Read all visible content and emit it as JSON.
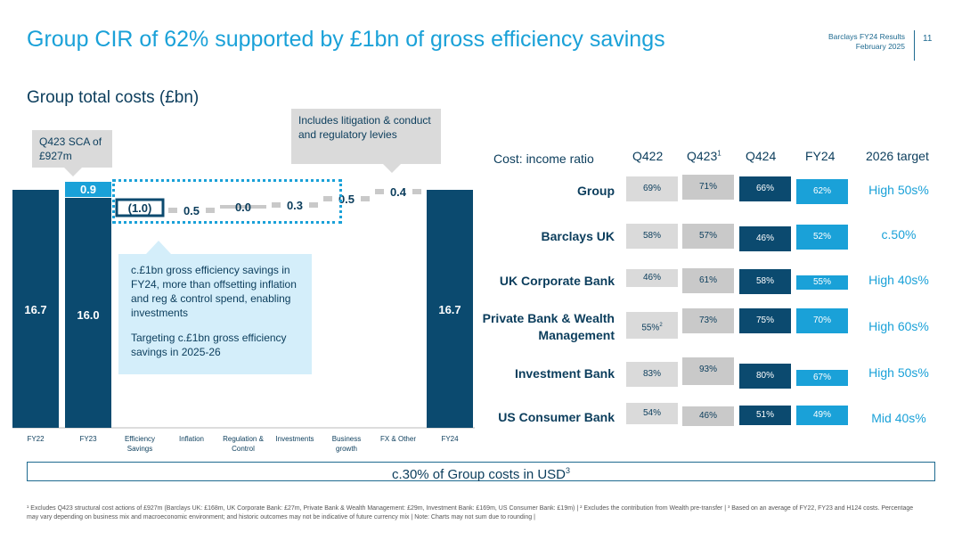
{
  "header": {
    "title": "Group CIR of 62% supported by £1bn of gross efficiency savings",
    "meta_line1": "Barclays FY24 Results",
    "meta_line2": "February 2025",
    "page_number": "11"
  },
  "chart_data": {
    "type": "waterfall",
    "title": "Group total costs (£bn)",
    "categories": [
      "FY22",
      "FY23",
      "Efficiency Savings",
      "Inflation",
      "Regulation & Control",
      "Investments",
      "Business growth",
      "FX & Other",
      "FY24"
    ],
    "category_lines": [
      [
        "FY22"
      ],
      [
        "FY23"
      ],
      [
        "Efficiency",
        "Savings"
      ],
      [
        "Inflation"
      ],
      [
        "Regulation &",
        "Control"
      ],
      [
        "Investments"
      ],
      [
        "Business",
        "growth"
      ],
      [
        "FX & Other"
      ],
      [
        "FY24"
      ]
    ],
    "fy22_total": 16.7,
    "fy23_base": 16.0,
    "fy23_sca": 0.9,
    "deltas": [
      {
        "category": "Efficiency Savings",
        "value": -1.0,
        "label": "(1.0)"
      },
      {
        "category": "Inflation",
        "value": 0.5,
        "label": "0.5"
      },
      {
        "category": "Regulation & Control",
        "value": 0.0,
        "label": "0.0"
      },
      {
        "category": "Investments",
        "value": 0.3,
        "label": "0.3"
      },
      {
        "category": "Business growth",
        "value": 0.5,
        "label": "0.5"
      },
      {
        "category": "FX & Other",
        "value": 0.4,
        "label": "0.4"
      }
    ],
    "fy24_total": 16.7,
    "labels": {
      "fy22": "16.7",
      "fy23": "16.0",
      "sca": "0.9",
      "fy24": "16.7"
    },
    "colors": {
      "total": "#0b4a6f",
      "sca": "#1aa1d8",
      "step": "#c9c9c9",
      "dotted": "#1aa1d8"
    }
  },
  "callouts": {
    "sca_text": "Q423 SCA of £927m",
    "litigation_text": "Includes litigation & conduct and regulatory levies",
    "efficiency_p1": "c.£1bn gross efficiency savings in FY24, more than offsetting inflation and reg & control spend, enabling investments",
    "efficiency_p2": "Targeting c.£1bn gross efficiency savings in 2025-26"
  },
  "cir_table": {
    "heading": "Cost: income ratio",
    "columns": [
      "Q422",
      "Q423",
      "Q424",
      "FY24",
      "2026 target"
    ],
    "q423_sup": "1",
    "rows": [
      {
        "name": "Group",
        "q422": "69%",
        "q423": "71%",
        "q424": "66%",
        "fy24": "62%",
        "target": "High 50s%"
      },
      {
        "name": "Barclays UK",
        "q422": "58%",
        "q423": "57%",
        "q424": "46%",
        "fy24": "52%",
        "target": "c.50%"
      },
      {
        "name": "UK Corporate Bank",
        "q422": "46%",
        "q423": "61%",
        "q424": "58%",
        "fy24": "55%",
        "target": "High 40s%"
      },
      {
        "name_line1": "Private Bank & Wealth",
        "name_line2": "Management",
        "q422": "55%",
        "q422_sup": "2",
        "q423": "73%",
        "q424": "75%",
        "fy24": "70%",
        "target": "High 60s%"
      },
      {
        "name": "Investment Bank",
        "q422": "83%",
        "q423": "93%",
        "q424": "80%",
        "fy24": "67%",
        "target": "High 50s%"
      },
      {
        "name": "US Consumer Bank",
        "q422": "54%",
        "q423": "46%",
        "q424": "51%",
        "fy24": "49%",
        "target": "Mid 40s%"
      }
    ]
  },
  "usd_banner": {
    "text": "c.30% of Group costs in USD",
    "sup": "3"
  },
  "footnote": "¹ Excludes Q423 structural cost actions of £927m (Barclays UK: £168m, UK Corporate Bank: £27m, Private Bank & Wealth Management: £29m, Investment Bank: £169m, US Consumer Bank: £19m) | ² Excludes the contribution from Wealth pre-transfer | ³ Based on an average of FY22, FY23 and H124 costs. Percentage may vary depending on business mix and macroeconomic environment; and historic outcomes may not be indicative of future currency mix | Note: Charts may not sum due to rounding |"
}
